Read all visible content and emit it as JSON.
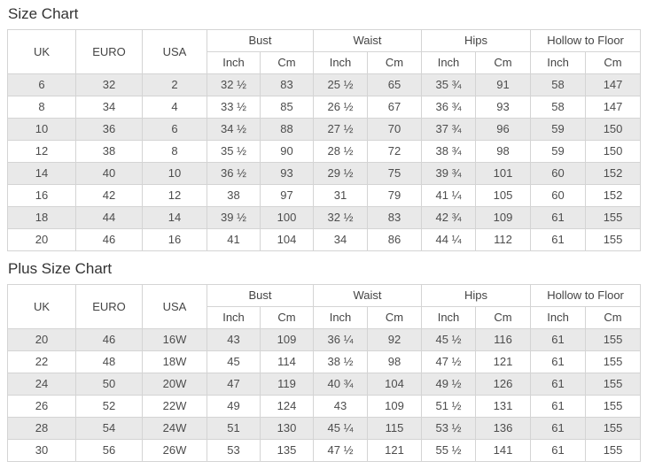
{
  "colors": {
    "stripe_row": "#e9e9e9",
    "border": "#d4d4d4",
    "cell_text": "#4d4d4d",
    "header_text": "#444444",
    "title_text": "#333333",
    "background": "#ffffff"
  },
  "size_chart": {
    "title": "Size Chart",
    "size_columns": [
      "UK",
      "EURO",
      "USA"
    ],
    "measure_columns": [
      "Bust",
      "Waist",
      "Hips",
      "Hollow to Floor"
    ],
    "unit_columns": [
      "Inch",
      "Cm"
    ],
    "rows": [
      [
        "6",
        "32",
        "2",
        "32 ½",
        "83",
        "25 ½",
        "65",
        "35 ¾",
        "91",
        "58",
        "147"
      ],
      [
        "8",
        "34",
        "4",
        "33 ½",
        "85",
        "26 ½",
        "67",
        "36 ¾",
        "93",
        "58",
        "147"
      ],
      [
        "10",
        "36",
        "6",
        "34 ½",
        "88",
        "27 ½",
        "70",
        "37 ¾",
        "96",
        "59",
        "150"
      ],
      [
        "12",
        "38",
        "8",
        "35 ½",
        "90",
        "28 ½",
        "72",
        "38 ¾",
        "98",
        "59",
        "150"
      ],
      [
        "14",
        "40",
        "10",
        "36 ½",
        "93",
        "29 ½",
        "75",
        "39 ¾",
        "101",
        "60",
        "152"
      ],
      [
        "16",
        "42",
        "12",
        "38",
        "97",
        "31",
        "79",
        "41 ¼",
        "105",
        "60",
        "152"
      ],
      [
        "18",
        "44",
        "14",
        "39 ½",
        "100",
        "32 ½",
        "83",
        "42 ¾",
        "109",
        "61",
        "155"
      ],
      [
        "20",
        "46",
        "16",
        "41",
        "104",
        "34",
        "86",
        "44 ¼",
        "112",
        "61",
        "155"
      ]
    ]
  },
  "plus_size_chart": {
    "title": "Plus Size Chart",
    "size_columns": [
      "UK",
      "EURO",
      "USA"
    ],
    "measure_columns": [
      "Bust",
      "Waist",
      "Hips",
      "Hollow to Floor"
    ],
    "unit_columns": [
      "Inch",
      "Cm"
    ],
    "rows": [
      [
        "20",
        "46",
        "16W",
        "43",
        "109",
        "36 ¼",
        "92",
        "45 ½",
        "116",
        "61",
        "155"
      ],
      [
        "22",
        "48",
        "18W",
        "45",
        "114",
        "38 ½",
        "98",
        "47 ½",
        "121",
        "61",
        "155"
      ],
      [
        "24",
        "50",
        "20W",
        "47",
        "119",
        "40 ¾",
        "104",
        "49 ½",
        "126",
        "61",
        "155"
      ],
      [
        "26",
        "52",
        "22W",
        "49",
        "124",
        "43",
        "109",
        "51 ½",
        "131",
        "61",
        "155"
      ],
      [
        "28",
        "54",
        "24W",
        "51",
        "130",
        "45 ¼",
        "115",
        "53 ½",
        "136",
        "61",
        "155"
      ],
      [
        "30",
        "56",
        "26W",
        "53",
        "135",
        "47 ½",
        "121",
        "55 ½",
        "141",
        "61",
        "155"
      ]
    ]
  }
}
